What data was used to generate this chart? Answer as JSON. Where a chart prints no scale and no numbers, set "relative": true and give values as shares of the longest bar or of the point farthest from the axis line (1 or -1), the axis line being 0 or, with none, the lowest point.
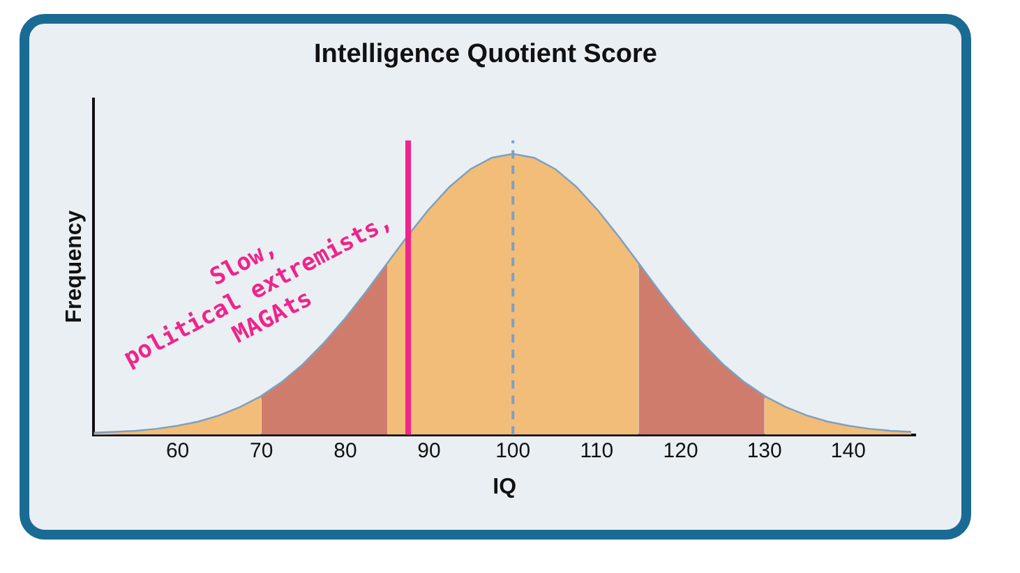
{
  "chart_data": {
    "type": "area",
    "title": "Intelligence Quotient Score",
    "xlabel": "IQ",
    "ylabel": "Frequency",
    "relative": true,
    "legend": false,
    "grid": false,
    "xlim": [
      50,
      148
    ],
    "xticks": [
      60,
      70,
      80,
      90,
      100,
      110,
      120,
      130,
      140
    ],
    "series": [
      {
        "color": "#f2bd78",
        "x": [
          50,
          52.5,
          55,
          57.5,
          60,
          62.5,
          65,
          67.5,
          70
        ],
        "values": [
          0.004,
          0.007,
          0.011,
          0.018,
          0.029,
          0.044,
          0.066,
          0.096,
          0.135
        ]
      },
      {
        "color": "#cf7c6c",
        "x": [
          70,
          72.5,
          75,
          77.5,
          80,
          82.5,
          85
        ],
        "values": [
          0.135,
          0.186,
          0.249,
          0.325,
          0.411,
          0.506,
          0.607
        ]
      },
      {
        "color": "#f2bd78",
        "x": [
          85,
          87.5,
          90,
          92.5,
          95,
          97.5,
          100,
          102.5,
          105,
          107.5,
          110,
          112.5,
          115
        ],
        "values": [
          0.607,
          0.707,
          0.801,
          0.883,
          0.946,
          0.986,
          1,
          0.986,
          0.946,
          0.883,
          0.801,
          0.707,
          0.607
        ]
      },
      {
        "color": "#cf7c6c",
        "x": [
          115,
          117.5,
          120,
          122.5,
          125,
          127.5,
          130
        ],
        "values": [
          0.607,
          0.506,
          0.411,
          0.325,
          0.249,
          0.186,
          0.135
        ]
      },
      {
        "color": "#f2bd78",
        "x": [
          130,
          132.5,
          135,
          137.5,
          140,
          142.5,
          145,
          147.5
        ],
        "values": [
          0.135,
          0.096,
          0.066,
          0.044,
          0.029,
          0.018,
          0.011,
          0.007
        ]
      },
      {
        "type": "line",
        "color": "#7f9fc0",
        "x": [
          50,
          52.5,
          55,
          57.5,
          60,
          62.5,
          65,
          67.5,
          70,
          72.5,
          75,
          77.5,
          80,
          82.5,
          85,
          87.5,
          90,
          92.5,
          95,
          97.5,
          100,
          102.5,
          105,
          107.5,
          110,
          112.5,
          115,
          117.5,
          120,
          122.5,
          125,
          127.5,
          130,
          132.5,
          135,
          137.5,
          140,
          142.5,
          145,
          147.5
        ],
        "values": [
          0.004,
          0.007,
          0.011,
          0.018,
          0.029,
          0.044,
          0.066,
          0.096,
          0.135,
          0.186,
          0.249,
          0.325,
          0.411,
          0.506,
          0.607,
          0.707,
          0.801,
          0.883,
          0.946,
          0.986,
          1,
          0.986,
          0.946,
          0.883,
          0.801,
          0.707,
          0.607,
          0.506,
          0.411,
          0.325,
          0.249,
          0.186,
          0.135,
          0.096,
          0.066,
          0.044,
          0.029,
          0.018,
          0.011,
          0.007
        ]
      }
    ],
    "ref_lines": [
      {
        "axis": "x",
        "value": 100,
        "color": "#7f9fc0",
        "line_style": "dashed"
      },
      {
        "axis": "x",
        "value": 87.5,
        "color": "#f0248a",
        "line_style": "solid"
      }
    ],
    "annotations": [
      "Slow,\npolitical extremists,\nMAGAts"
    ]
  }
}
